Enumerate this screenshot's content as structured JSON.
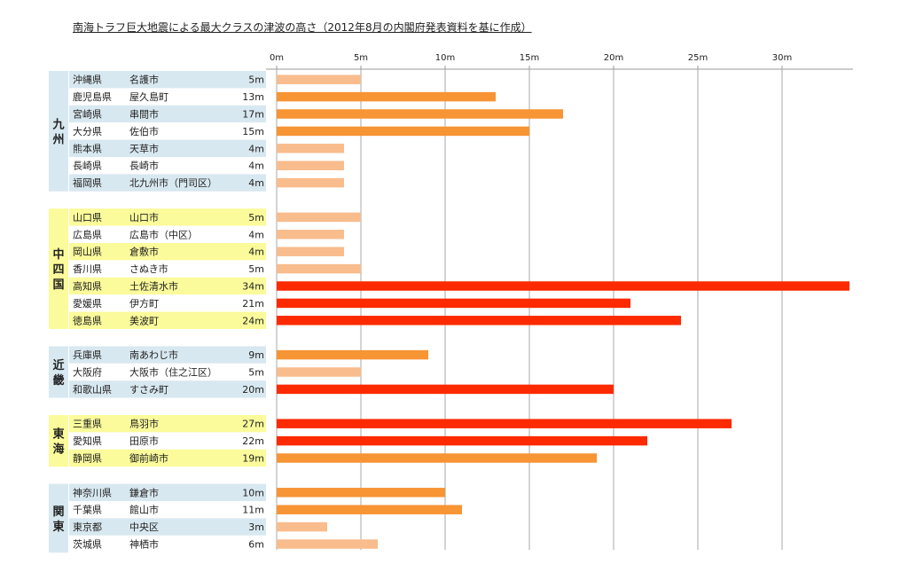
{
  "title": "南海トラフ巨大地震による最大クラスの津波の高さ（2012年8月の内閣府発表資料を基に作成）",
  "chart_data": {
    "type": "bar",
    "orientation": "horizontal",
    "xlim": [
      0,
      34
    ],
    "ticks": [
      0,
      5,
      10,
      15,
      20,
      25,
      30
    ],
    "tick_labels": [
      "0m",
      "5m",
      "10m",
      "15m",
      "20m",
      "25m",
      "30m"
    ],
    "grid": true,
    "unit": "m",
    "colors": {
      "low": "#f9bc8c",
      "mid": "#f79434",
      "high": "#fd2a00",
      "band_blue": "#d8e8f0",
      "band_yellow": "#fbfb9b"
    },
    "groups": [
      {
        "region": "九州",
        "color": "blue",
        "rows": [
          {
            "pref": "沖縄県",
            "city": "名護市",
            "value": 5,
            "label": "5m"
          },
          {
            "pref": "鹿児島県",
            "city": "屋久島町",
            "value": 13,
            "label": "13m"
          },
          {
            "pref": "宮崎県",
            "city": "串間市",
            "value": 17,
            "label": "17m"
          },
          {
            "pref": "大分県",
            "city": "佐伯市",
            "value": 15,
            "label": "15m"
          },
          {
            "pref": "熊本県",
            "city": "天草市",
            "value": 4,
            "label": "4m"
          },
          {
            "pref": "長崎県",
            "city": "長崎市",
            "value": 4,
            "label": "4m"
          },
          {
            "pref": "福岡県",
            "city": "北九州市（門司区）",
            "value": 4,
            "label": "4m"
          }
        ]
      },
      {
        "region": "中四国",
        "color": "yellow",
        "rows": [
          {
            "pref": "山口県",
            "city": "山口市",
            "value": 5,
            "label": "5m"
          },
          {
            "pref": "広島県",
            "city": "広島市（中区）",
            "value": 4,
            "label": "4m"
          },
          {
            "pref": "岡山県",
            "city": "倉敷市",
            "value": 4,
            "label": "4m"
          },
          {
            "pref": "香川県",
            "city": "さぬき市",
            "value": 5,
            "label": "5m"
          },
          {
            "pref": "高知県",
            "city": "土佐清水市",
            "value": 34,
            "label": "34m"
          },
          {
            "pref": "愛媛県",
            "city": "伊方町",
            "value": 21,
            "label": "21m"
          },
          {
            "pref": "徳島県",
            "city": "美波町",
            "value": 24,
            "label": "24m"
          }
        ]
      },
      {
        "region": "近畿",
        "color": "blue",
        "rows": [
          {
            "pref": "兵庫県",
            "city": "南あわじ市",
            "value": 9,
            "label": "9m"
          },
          {
            "pref": "大阪府",
            "city": "大阪市（住之江区）",
            "value": 5,
            "label": "5m"
          },
          {
            "pref": "和歌山県",
            "city": "すさみ町",
            "value": 20,
            "label": "20m"
          }
        ]
      },
      {
        "region": "東海",
        "color": "yellow",
        "rows": [
          {
            "pref": "三重県",
            "city": "鳥羽市",
            "value": 27,
            "label": "27m"
          },
          {
            "pref": "愛知県",
            "city": "田原市",
            "value": 22,
            "label": "22m"
          },
          {
            "pref": "静岡県",
            "city": "御前崎市",
            "value": 19,
            "label": "19m"
          }
        ]
      },
      {
        "region": "関東",
        "color": "blue",
        "rows": [
          {
            "pref": "神奈川県",
            "city": "鎌倉市",
            "value": 10,
            "label": "10m"
          },
          {
            "pref": "千葉県",
            "city": "館山市",
            "value": 11,
            "label": "11m"
          },
          {
            "pref": "東京都",
            "city": "中央区",
            "value": 3,
            "label": "3m"
          },
          {
            "pref": "茨城県",
            "city": "神栖市",
            "value": 6,
            "label": "6m"
          }
        ]
      }
    ]
  }
}
